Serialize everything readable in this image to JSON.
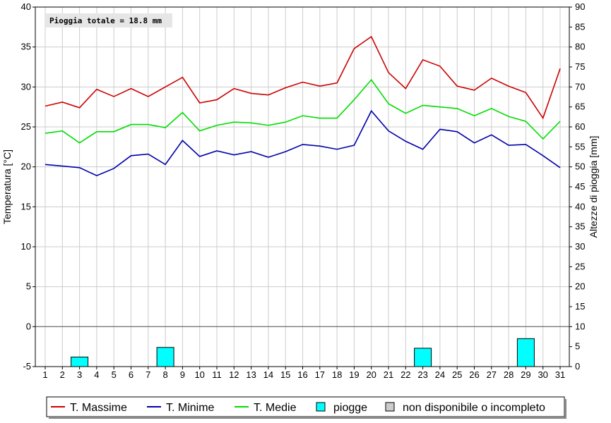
{
  "chart_data": {
    "type": "line",
    "x": [
      1,
      2,
      3,
      4,
      5,
      6,
      7,
      8,
      9,
      10,
      11,
      12,
      13,
      14,
      15,
      16,
      17,
      18,
      19,
      20,
      21,
      22,
      23,
      24,
      25,
      26,
      27,
      28,
      29,
      30,
      31
    ],
    "ylabel": "Temperatura [°C]",
    "ylabel_right": "Altezze di pioggia [mm]",
    "ylim": [
      -5,
      40
    ],
    "ylim_right": [
      0,
      90
    ],
    "yticks": [
      -5,
      0,
      5,
      10,
      15,
      20,
      25,
      30,
      35,
      40
    ],
    "yticks_right": [
      0,
      5,
      10,
      15,
      20,
      25,
      30,
      35,
      40,
      45,
      50,
      55,
      60,
      65,
      70,
      75,
      80,
      85,
      90
    ],
    "grid": true,
    "annotation": "Pioggia totale = 18.8 mm",
    "legend_position": "bottom",
    "series": [
      {
        "name": "T. Massime",
        "color": "#cc0000",
        "type": "line",
        "values": [
          27.6,
          28.1,
          27.4,
          29.7,
          28.8,
          29.8,
          28.8,
          30.0,
          31.2,
          28.0,
          28.4,
          29.8,
          29.2,
          29.0,
          29.9,
          30.6,
          30.1,
          30.5,
          34.8,
          36.3,
          31.8,
          29.8,
          33.4,
          32.6,
          30.1,
          29.6,
          31.1,
          30.1,
          29.3,
          26.1,
          32.3
        ]
      },
      {
        "name": "T. Minime",
        "color": "#0000aa",
        "type": "line",
        "values": [
          20.3,
          20.1,
          19.9,
          18.9,
          19.8,
          21.4,
          21.6,
          20.3,
          23.3,
          21.3,
          22.0,
          21.5,
          21.9,
          21.2,
          21.9,
          22.8,
          22.6,
          22.2,
          22.7,
          27.0,
          24.5,
          23.2,
          22.2,
          24.7,
          24.4,
          23.0,
          24.0,
          22.7,
          22.8,
          21.4,
          19.9
        ]
      },
      {
        "name": "T. Medie",
        "color": "#00dd00",
        "type": "line",
        "values": [
          24.2,
          24.5,
          23.0,
          24.4,
          24.4,
          25.3,
          25.3,
          24.9,
          26.8,
          24.5,
          25.2,
          25.6,
          25.5,
          25.2,
          25.6,
          26.4,
          26.1,
          26.1,
          28.4,
          30.9,
          27.9,
          26.7,
          27.7,
          27.5,
          27.3,
          26.4,
          27.3,
          26.3,
          25.7,
          23.5,
          25.7
        ]
      },
      {
        "name": "piogge",
        "color": "#00ffff",
        "type": "bar",
        "axis": "right",
        "points": [
          {
            "x": 3,
            "y": 2.4
          },
          {
            "x": 8,
            "y": 4.8
          },
          {
            "x": 23,
            "y": 4.6
          },
          {
            "x": 29,
            "y": 7.0
          }
        ]
      }
    ],
    "legend": [
      {
        "name": "T. Massime",
        "kind": "line",
        "color": "#cc0000"
      },
      {
        "name": "T. Minime",
        "kind": "line",
        "color": "#0000aa"
      },
      {
        "name": "T. Medie",
        "kind": "line",
        "color": "#00dd00"
      },
      {
        "name": "piogge",
        "kind": "box",
        "color": "#00ffff"
      },
      {
        "name": "non disponibile o incompleto",
        "kind": "box",
        "color": "#cccccc"
      }
    ]
  }
}
